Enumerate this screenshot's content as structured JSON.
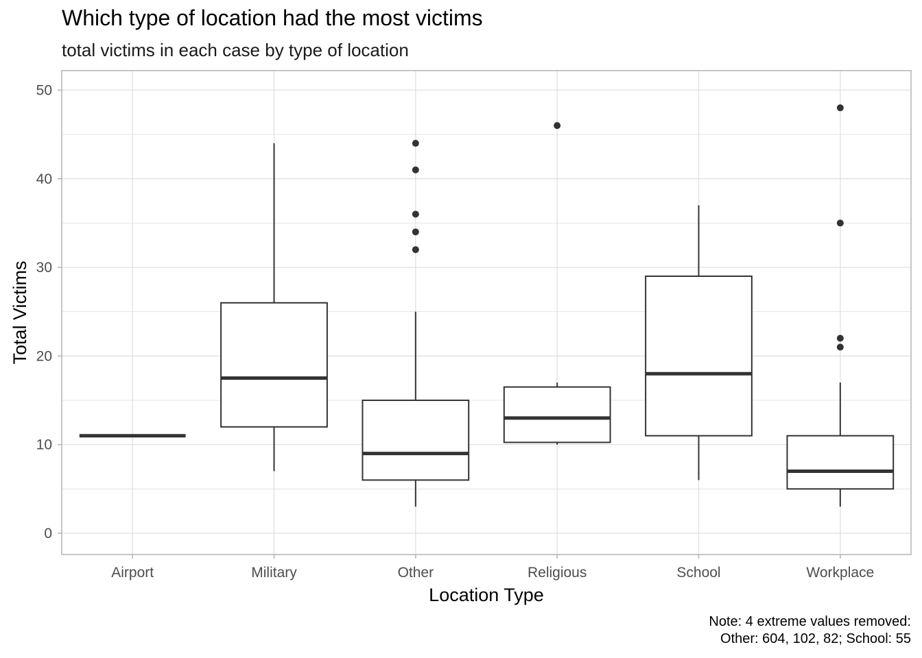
{
  "chart_data": {
    "type": "boxplot",
    "title": "Which type of location had the most victims",
    "subtitle": "total victims in each case by type of location",
    "xlabel": "Location Type",
    "ylabel": "Total Victims",
    "caption_lines": [
      "Note: 4 extreme values removed:",
      "Other: 604, 102, 82; School: 55"
    ],
    "ylim": [
      -2.4,
      52.2
    ],
    "yticks": [
      0,
      10,
      20,
      30,
      40,
      50
    ],
    "grid": true,
    "categories": [
      "Airport",
      "Military",
      "Other",
      "Religious",
      "School",
      "Workplace"
    ],
    "boxes": [
      {
        "category": "Airport",
        "q1": 11,
        "median": 11,
        "q3": 11,
        "whisker_low": 11,
        "whisker_high": 11,
        "outliers": []
      },
      {
        "category": "Military",
        "q1": 12,
        "median": 17.5,
        "q3": 26,
        "whisker_low": 7,
        "whisker_high": 44,
        "outliers": []
      },
      {
        "category": "Other",
        "q1": 6,
        "median": 9,
        "q3": 15,
        "whisker_low": 3,
        "whisker_high": 25,
        "outliers": [
          32,
          34,
          36,
          41,
          44
        ]
      },
      {
        "category": "Religious",
        "q1": 10.25,
        "median": 13,
        "q3": 16.5,
        "whisker_low": 10,
        "whisker_high": 17,
        "outliers": [
          46
        ]
      },
      {
        "category": "School",
        "q1": 11,
        "median": 18,
        "q3": 29,
        "whisker_low": 6,
        "whisker_high": 37,
        "outliers": []
      },
      {
        "category": "Workplace",
        "q1": 5,
        "median": 7,
        "q3": 11,
        "whisker_low": 3,
        "whisker_high": 17,
        "outliers": [
          21,
          22,
          35,
          48
        ]
      }
    ],
    "colors": {
      "box_line": "#333333",
      "grid": "#dedede",
      "panel_border": "#b3b3b3",
      "point": "#333333"
    }
  }
}
